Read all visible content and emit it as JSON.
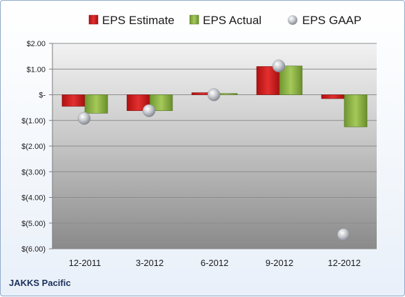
{
  "company": "JAKKS Pacific",
  "chart_data": {
    "type": "bar",
    "categories": [
      "12-2011",
      "3-2012",
      "6-2012",
      "9-2012",
      "12-2012"
    ],
    "series": [
      {
        "name": "EPS Estimate",
        "kind": "bar",
        "color": "#cc1f1f",
        "values": [
          -0.45,
          -0.62,
          0.08,
          1.1,
          -0.15
        ]
      },
      {
        "name": "EPS Actual",
        "kind": "bar",
        "color": "#8cb043",
        "values": [
          -0.72,
          -0.62,
          0.05,
          1.12,
          -1.25
        ]
      },
      {
        "name": "EPS GAAP",
        "kind": "marker",
        "color": "#b8bcc4",
        "values": [
          -0.92,
          -0.62,
          0.0,
          1.12,
          -5.45
        ]
      }
    ],
    "yticks": [
      2,
      1,
      0,
      -1,
      -2,
      -3,
      -4,
      -5,
      -6
    ],
    "ytick_labels": [
      "$2.00",
      "$1.00",
      "$-",
      "$(1.00)",
      "$(2.00)",
      "$(3.00)",
      "$(4.00)",
      "$(5.00)",
      "$(6.00)"
    ],
    "ylim": [
      -6,
      2
    ],
    "grid": true,
    "legend": "top"
  }
}
